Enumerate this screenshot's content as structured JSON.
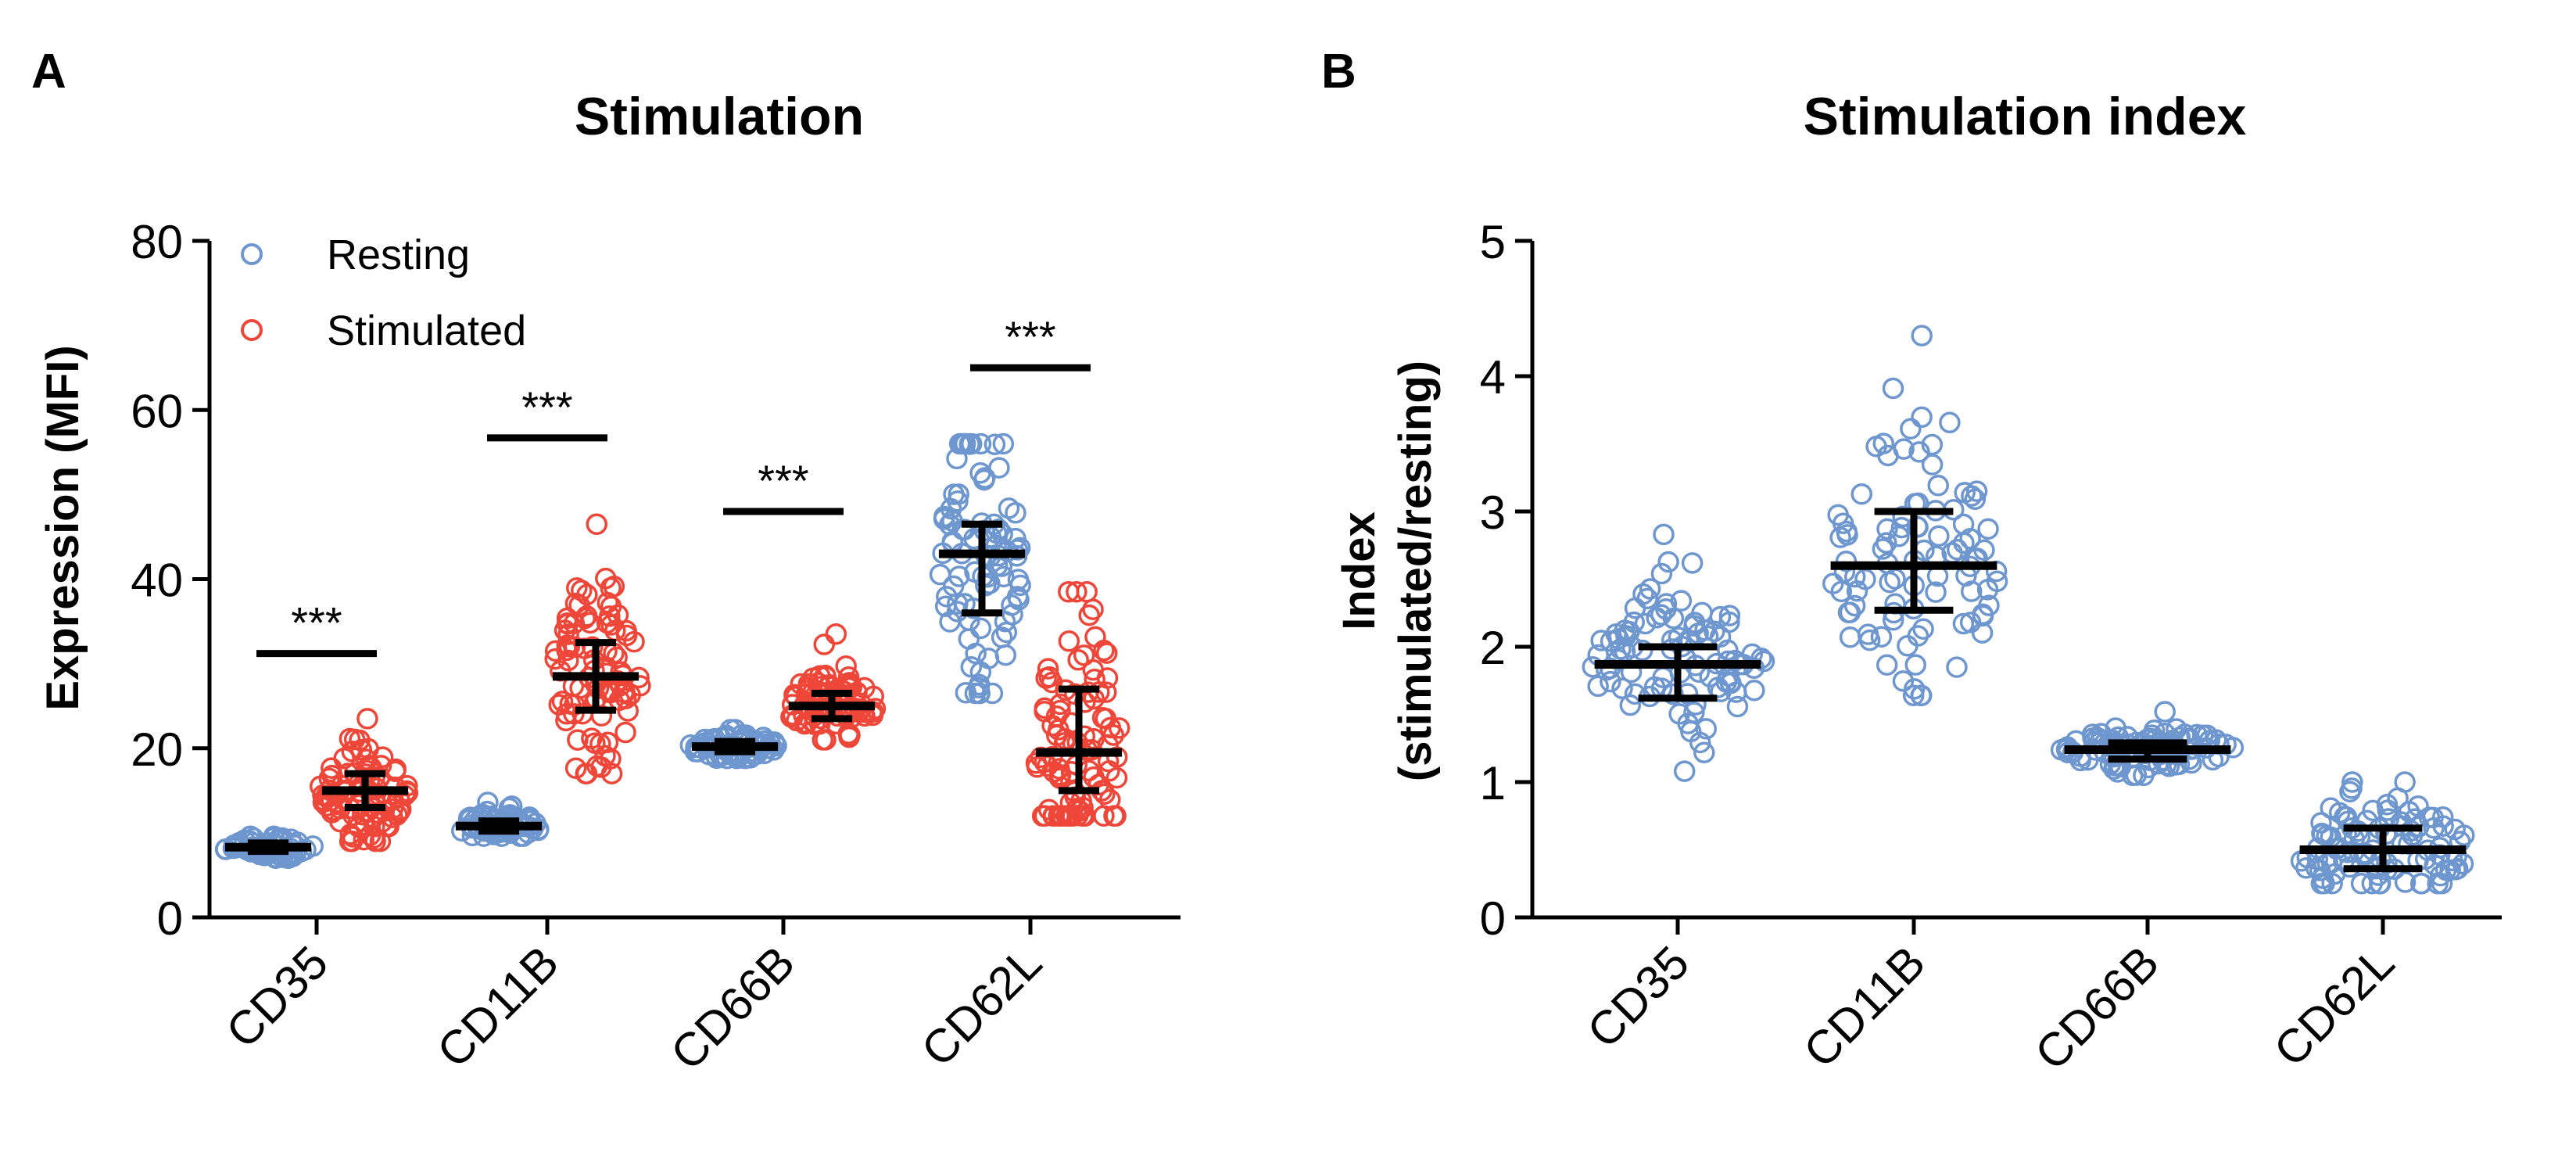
{
  "colors": {
    "resting": "#6F97CF",
    "stimulated": "#EE4638",
    "stat": "#000000"
  },
  "chart_data": [
    {
      "panel_label": "A",
      "type": "scatter",
      "title": "Stimulation",
      "xlabel": "",
      "ylabel": "Expression (MFI)",
      "ylim": [
        0,
        80
      ],
      "yticks": [
        "0",
        "20",
        "40",
        "60",
        "80"
      ],
      "categories": [
        "CD35",
        "CD11B",
        "CD66B",
        "CD62L"
      ],
      "legend": {
        "placement": "top-left",
        "entries": [
          "Resting",
          "Stimulated"
        ]
      },
      "series": [
        {
          "name": "Resting",
          "color": "#6F97CF",
          "groups": [
            {
              "category": "CD35",
              "median": 8.3,
              "q1": 7.8,
              "q3": 8.8,
              "min": 7.0,
              "max": 9.6,
              "n": 70
            },
            {
              "category": "CD11B",
              "median": 10.8,
              "q1": 10.2,
              "q3": 11.4,
              "min": 9.6,
              "max": 13.6,
              "n": 70
            },
            {
              "category": "CD66B",
              "median": 20.2,
              "q1": 19.6,
              "q3": 20.8,
              "min": 18.8,
              "max": 22.2,
              "n": 70
            },
            {
              "category": "CD62L",
              "median": 43.0,
              "q1": 36.0,
              "q3": 46.5,
              "min": 26.5,
              "max": 56.0,
              "n": 90
            }
          ]
        },
        {
          "name": "Stimulated",
          "color": "#EE4638",
          "groups": [
            {
              "category": "CD35",
              "median": 15.0,
              "q1": 13.0,
              "q3": 17.0,
              "min": 9.0,
              "max": 23.5,
              "n": 90
            },
            {
              "category": "CD11B",
              "median": 28.5,
              "q1": 24.5,
              "q3": 32.5,
              "min": 17.0,
              "max": 46.5,
              "n": 90
            },
            {
              "category": "CD66B",
              "median": 25.0,
              "q1": 23.5,
              "q3": 26.5,
              "min": 21.0,
              "max": 33.5,
              "n": 80
            },
            {
              "category": "CD62L",
              "median": 19.5,
              "q1": 15.0,
              "q3": 27.0,
              "min": 12.0,
              "max": 38.5,
              "n": 100
            }
          ]
        }
      ],
      "significance": [
        {
          "category": "CD35",
          "label": "***",
          "y": 31.2
        },
        {
          "category": "CD11B",
          "label": "***",
          "y": 56.7
        },
        {
          "category": "CD66B",
          "label": "***",
          "y": 48.0
        },
        {
          "category": "CD62L",
          "label": "***",
          "y": 65.0
        }
      ]
    },
    {
      "panel_label": "B",
      "type": "scatter",
      "title": "Stimulation index",
      "xlabel": "",
      "ylabel_line1": "Index",
      "ylabel_line2": "(stimulated/resting)",
      "ylim": [
        0,
        5
      ],
      "yticks": [
        "0",
        "1",
        "2",
        "3",
        "4",
        "5"
      ],
      "categories": [
        "CD35",
        "CD11B",
        "CD66B",
        "CD62L"
      ],
      "series": [
        {
          "name": "Index",
          "color": "#6F97CF",
          "groups": [
            {
              "category": "CD35",
              "median": 1.87,
              "q1": 1.62,
              "q3": 2.0,
              "min": 1.08,
              "max": 2.83,
              "n": 95
            },
            {
              "category": "CD11B",
              "median": 2.6,
              "q1": 2.27,
              "q3": 3.0,
              "min": 1.64,
              "max": 4.3,
              "n": 95
            },
            {
              "category": "CD66B",
              "median": 1.24,
              "q1": 1.17,
              "q3": 1.29,
              "min": 1.05,
              "max": 1.52,
              "n": 95
            },
            {
              "category": "CD62L",
              "median": 0.5,
              "q1": 0.36,
              "q3": 0.66,
              "min": 0.25,
              "max": 1.0,
              "n": 100
            }
          ]
        }
      ]
    }
  ]
}
